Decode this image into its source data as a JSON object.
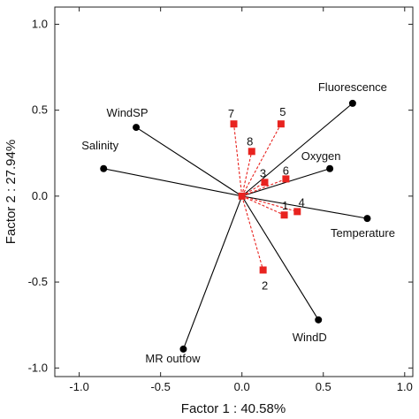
{
  "chart_data": {
    "type": "scatter",
    "xlabel": "Factor 1 : 40.58%",
    "ylabel": "Factor 2 : 27.94%",
    "xlim": [
      -1.15,
      1.05
    ],
    "ylim": [
      -1.05,
      1.1
    ],
    "x_ticks": [
      -1.0,
      -0.5,
      0.0,
      0.5,
      1.0
    ],
    "y_ticks": [
      -1.0,
      -0.5,
      0.0,
      0.5,
      1.0
    ],
    "x_tick_labels": [
      "-1.0",
      "-0.5",
      "0.0",
      "0.5",
      "1.0"
    ],
    "y_tick_labels": [
      "-1.0",
      "-0.5",
      "0.0",
      "0.5",
      "1.0"
    ],
    "variables": [
      {
        "label": "Fluorescence",
        "x": 0.68,
        "y": 0.54
      },
      {
        "label": "WindSP",
        "x": -0.65,
        "y": 0.4
      },
      {
        "label": "Salinity",
        "x": -0.85,
        "y": 0.16
      },
      {
        "label": "Oxygen",
        "x": 0.54,
        "y": 0.16
      },
      {
        "label": "Temperature",
        "x": 0.77,
        "y": -0.13
      },
      {
        "label": "WindD",
        "x": 0.47,
        "y": -0.72
      },
      {
        "label": "MR outfow",
        "x": -0.36,
        "y": -0.89
      }
    ],
    "cases": [
      {
        "label": "7",
        "x": -0.05,
        "y": 0.42
      },
      {
        "label": "5",
        "x": 0.24,
        "y": 0.42
      },
      {
        "label": "8",
        "x": 0.06,
        "y": 0.26
      },
      {
        "label": "3",
        "x": 0.14,
        "y": 0.08
      },
      {
        "label": "6",
        "x": 0.27,
        "y": 0.1
      },
      {
        "label": "1",
        "x": 0.26,
        "y": -0.11
      },
      {
        "label": "4",
        "x": 0.34,
        "y": -0.09
      },
      {
        "label": "2",
        "x": 0.13,
        "y": -0.43
      }
    ],
    "origin": {
      "x": 0.0,
      "y": 0.0
    },
    "variable_color": "#000000",
    "case_color": "#e8231f",
    "grid": false
  }
}
